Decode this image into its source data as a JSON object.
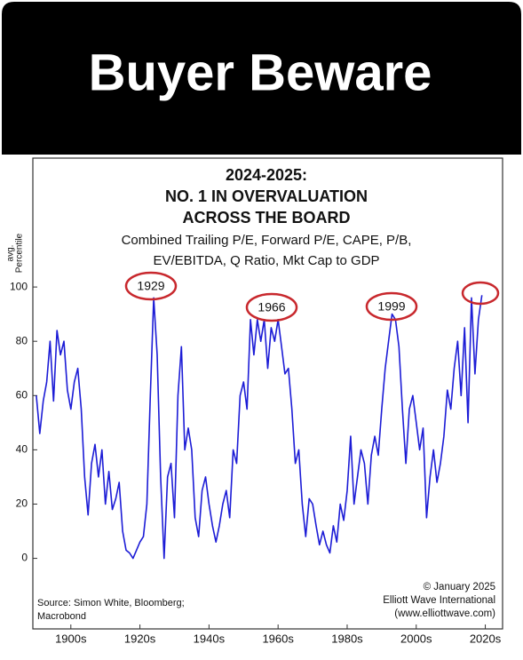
{
  "header": "Buyer Beware",
  "chart_data": {
    "type": "line",
    "title_lines": [
      "2024-2025:",
      "NO. 1 IN OVERVALUATION",
      "ACROSS THE BOARD"
    ],
    "subtitle_lines": [
      "Combined Trailing P/E, Forward P/E, CAPE, P/B,",
      "EV/EBITDA, Q Ratio, Mkt Cap to GDP"
    ],
    "ylabel_lines": [
      "avg.",
      "Percentile"
    ],
    "source_lines": [
      "Source: Simon White, Bloomberg;",
      "Macrobond"
    ],
    "credit_lines": [
      "© January 2025",
      "Elliott Wave International",
      "(www.elliottwave.com)"
    ],
    "annotations": [
      "1929",
      "1966",
      "1999"
    ],
    "color": "#1c1cd6",
    "x": [
      1895,
      1896,
      1897,
      1898,
      1899,
      1900,
      1901,
      1902,
      1903,
      1904,
      1905,
      1906,
      1907,
      1908,
      1909,
      1910,
      1911,
      1912,
      1913,
      1914,
      1915,
      1916,
      1917,
      1918,
      1919,
      1920,
      1921,
      1922,
      1923,
      1924,
      1925,
      1926,
      1927,
      1928,
      1929,
      1930,
      1931,
      1932,
      1933,
      1934,
      1935,
      1936,
      1937,
      1938,
      1939,
      1940,
      1941,
      1942,
      1943,
      1944,
      1945,
      1946,
      1947,
      1948,
      1949,
      1950,
      1951,
      1952,
      1953,
      1954,
      1955,
      1956,
      1957,
      1958,
      1959,
      1960,
      1961,
      1962,
      1963,
      1964,
      1965,
      1966,
      1967,
      1968,
      1969,
      1970,
      1971,
      1972,
      1973,
      1974,
      1975,
      1976,
      1977,
      1978,
      1979,
      1980,
      1981,
      1982,
      1983,
      1984,
      1985,
      1986,
      1987,
      1988,
      1989,
      1990,
      1991,
      1992,
      1993,
      1994,
      1995,
      1996,
      1997,
      1998,
      1999,
      2000,
      2001,
      2002,
      2003,
      2004,
      2005,
      2006,
      2007,
      2008,
      2009,
      2010,
      2011,
      2012,
      2013,
      2014,
      2015,
      2016,
      2017,
      2018,
      2019,
      2020,
      2021,
      2022,
      2023,
      2024
    ],
    "values": [
      60,
      46,
      58,
      65,
      80,
      58,
      84,
      75,
      80,
      62,
      55,
      65,
      70,
      55,
      30,
      16,
      35,
      42,
      30,
      40,
      20,
      32,
      18,
      22,
      28,
      10,
      3,
      2,
      0,
      3,
      6,
      8,
      20,
      60,
      96,
      75,
      30,
      0,
      30,
      35,
      15,
      60,
      78,
      40,
      48,
      40,
      15,
      8,
      25,
      30,
      20,
      12,
      6,
      12,
      20,
      25,
      15,
      40,
      35,
      60,
      65,
      55,
      88,
      75,
      88,
      80,
      88,
      70,
      85,
      80,
      88,
      78,
      68,
      70,
      55,
      35,
      40,
      20,
      8,
      22,
      20,
      12,
      5,
      10,
      5,
      2,
      12,
      6,
      20,
      14,
      25,
      45,
      20,
      30,
      40,
      35,
      20,
      38,
      45,
      38,
      55,
      70,
      80,
      90,
      88,
      78,
      55,
      35,
      55,
      60,
      50,
      40,
      48,
      15,
      30,
      40,
      28,
      35,
      45,
      62,
      55,
      70,
      80,
      60,
      85,
      50,
      96,
      68,
      88,
      97
    ],
    "xlim": [
      1894,
      2030
    ],
    "xticks": [
      {
        "value": 1905,
        "label": "1900s"
      },
      {
        "value": 1925,
        "label": "1920s"
      },
      {
        "value": 1945,
        "label": "1940s"
      },
      {
        "value": 1965,
        "label": "1960s"
      },
      {
        "value": 1985,
        "label": "1980s"
      },
      {
        "value": 2005,
        "label": "2000s"
      },
      {
        "value": 2025,
        "label": "2020s"
      }
    ],
    "ylim": [
      -26,
      147.5
    ],
    "yticks": [
      0,
      20,
      40,
      60,
      80,
      100
    ]
  }
}
